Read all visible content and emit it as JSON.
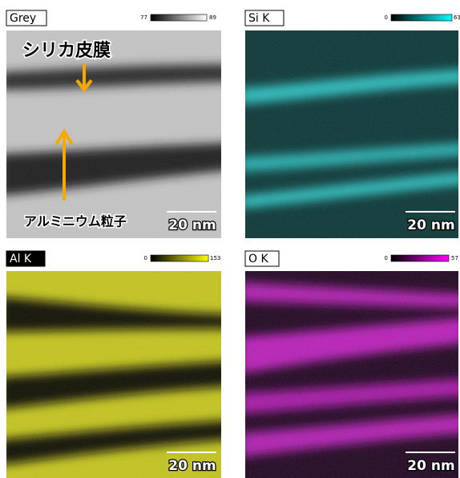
{
  "panels": [
    {
      "label": "Grey",
      "min": 77,
      "max": 89,
      "scale_bar": "20 nm"
    },
    {
      "label": "Si K",
      "min": 0,
      "max": 63,
      "scale_bar": "20 nm"
    },
    {
      "label": "Al K",
      "min": 0,
      "max": 153,
      "scale_bar": "20 nm"
    },
    {
      "label": "O K",
      "min": 0,
      "max": 57,
      "scale_bar": "20 nm"
    }
  ],
  "annotations": {
    "silica_film": "シリカ皮膜",
    "aluminum_particle": "アルミニウム粒子"
  }
}
